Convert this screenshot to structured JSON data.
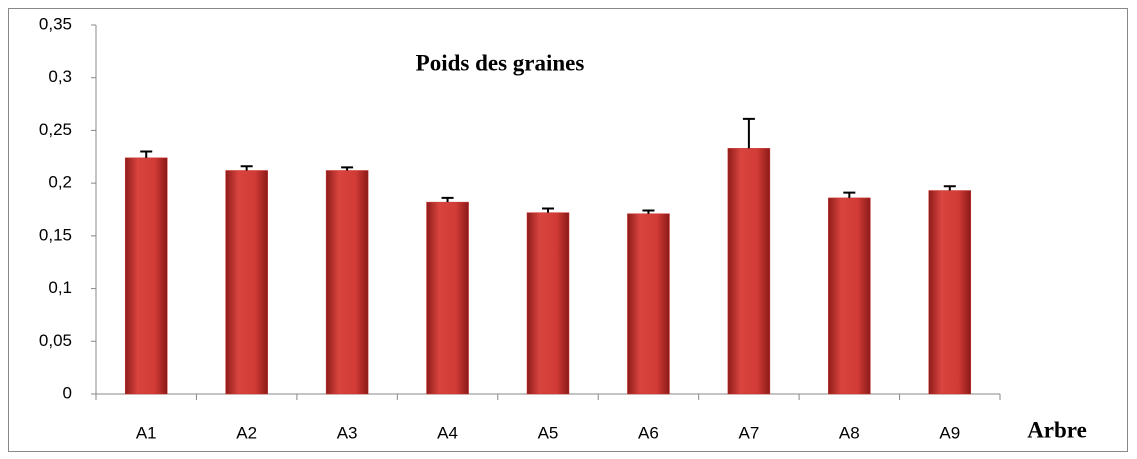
{
  "chart_data": {
    "type": "bar",
    "title": "Poids  des graines",
    "x_label": "Arbre",
    "categories": [
      "A1",
      "A2",
      "A3",
      "A4",
      "A5",
      "A6",
      "A7",
      "A8",
      "A9"
    ],
    "values": [
      0.224,
      0.212,
      0.212,
      0.182,
      0.172,
      0.171,
      0.233,
      0.186,
      0.193
    ],
    "errors": [
      0.006,
      0.004,
      0.003,
      0.004,
      0.004,
      0.003,
      0.028,
      0.005,
      0.004
    ],
    "color": "#c9302c",
    "ylim": [
      0,
      0.35
    ],
    "yticks": [
      {
        "value": 0,
        "label": "0"
      },
      {
        "value": 0.05,
        "label": "0,05"
      },
      {
        "value": 0.1,
        "label": "0,1"
      },
      {
        "value": 0.15,
        "label": "0,15"
      },
      {
        "value": 0.2,
        "label": "0,2"
      },
      {
        "value": 0.25,
        "label": "0,25"
      },
      {
        "value": 0.3,
        "label": "0,3"
      },
      {
        "value": 0.35,
        "label": "0,35"
      }
    ],
    "grid": false
  }
}
